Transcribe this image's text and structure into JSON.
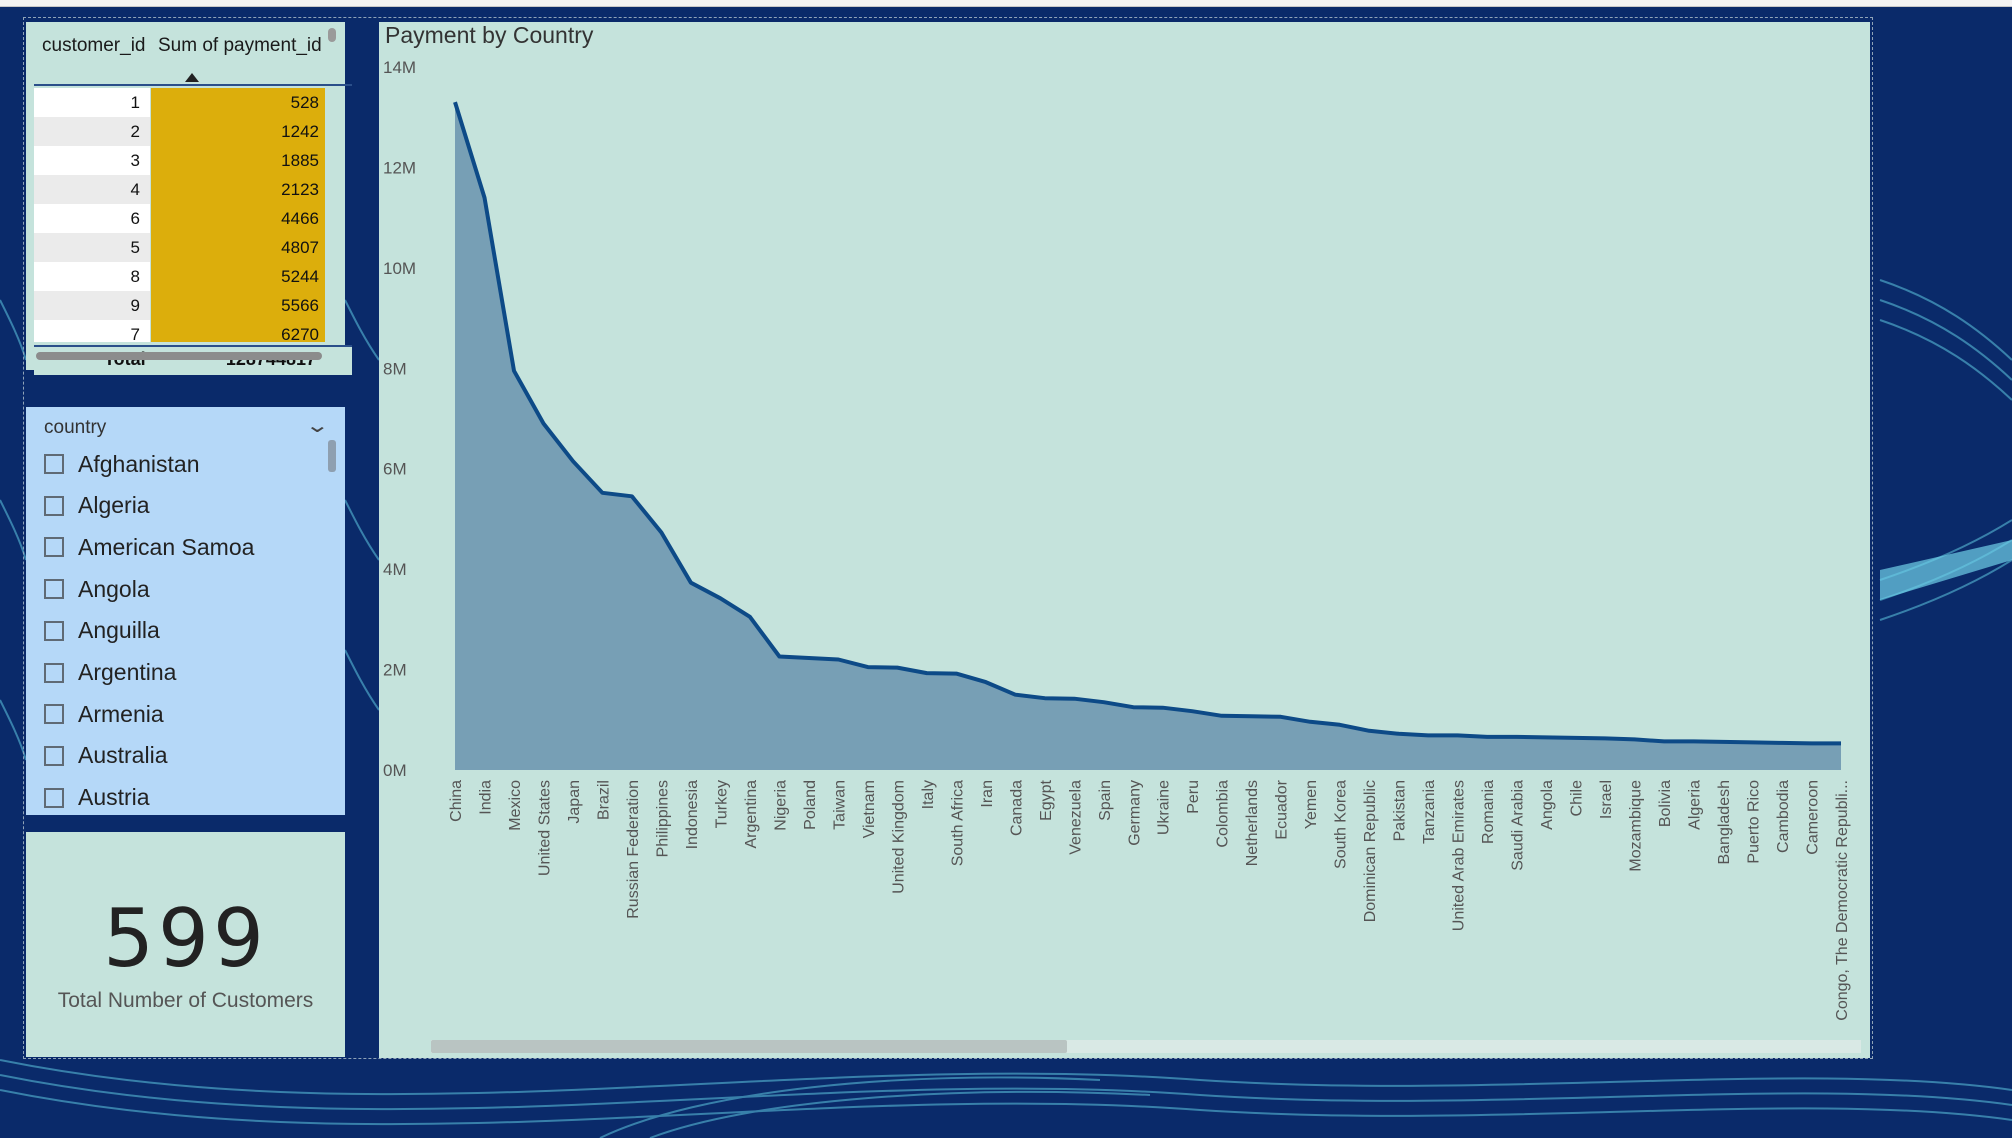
{
  "table": {
    "columns": [
      "customer_id",
      "Sum of payment_id"
    ],
    "sort_icon": "sort-ascending-icon",
    "rows": [
      {
        "id": "1",
        "sum": "528"
      },
      {
        "id": "2",
        "sum": "1242"
      },
      {
        "id": "3",
        "sum": "1885"
      },
      {
        "id": "4",
        "sum": "2123"
      },
      {
        "id": "6",
        "sum": "4466"
      },
      {
        "id": "5",
        "sum": "4807"
      },
      {
        "id": "8",
        "sum": "5244"
      },
      {
        "id": "9",
        "sum": "5566"
      },
      {
        "id": "7",
        "sum": "6270"
      }
    ],
    "total_label": "Total",
    "total_value": "128744817",
    "bar_color": "#dcae0c"
  },
  "slicer": {
    "title": "country",
    "chevron_icon": "chevron-down-icon",
    "items": [
      "Afghanistan",
      "Algeria",
      "American Samoa",
      "Angola",
      "Anguilla",
      "Argentina",
      "Armenia",
      "Australia",
      "Austria"
    ]
  },
  "card": {
    "value": "599",
    "label": "Total Number of Customers"
  },
  "chart_data": {
    "type": "area",
    "title": "Payment by Country",
    "xlabel": "",
    "ylabel": "",
    "ylim": [
      0,
      14000000
    ],
    "yticks": [
      {
        "value": 0,
        "label": "0M"
      },
      {
        "value": 2000000,
        "label": "2M"
      },
      {
        "value": 4000000,
        "label": "4M"
      },
      {
        "value": 6000000,
        "label": "6M"
      },
      {
        "value": 8000000,
        "label": "8M"
      },
      {
        "value": 10000000,
        "label": "10M"
      },
      {
        "value": 12000000,
        "label": "12M"
      },
      {
        "value": 14000000,
        "label": "14M"
      }
    ],
    "grid": false,
    "categories": [
      "China",
      "India",
      "Mexico",
      "United States",
      "Japan",
      "Brazil",
      "Russian Federation",
      "Philippines",
      "Indonesia",
      "Turkey",
      "Argentina",
      "Nigeria",
      "Poland",
      "Taiwan",
      "Vietnam",
      "United Kingdom",
      "Italy",
      "South Africa",
      "Iran",
      "Canada",
      "Egypt",
      "Venezuela",
      "Spain",
      "Germany",
      "Ukraine",
      "Peru",
      "Colombia",
      "Netherlands",
      "Ecuador",
      "Yemen",
      "South Korea",
      "Dominican Republic",
      "Pakistan",
      "Tanzania",
      "United Arab Emirates",
      "Romania",
      "Saudi Arabia",
      "Angola",
      "Chile",
      "Israel",
      "Mozambique",
      "Bolivia",
      "Algeria",
      "Bangladesh",
      "Puerto Rico",
      "Cambodia",
      "Cameroon",
      "Congo, The Democratic Republi..."
    ],
    "values": [
      13300000,
      11400000,
      7950000,
      6900000,
      6150000,
      5520000,
      5450000,
      4730000,
      3730000,
      3420000,
      3050000,
      2260000,
      2230000,
      2200000,
      2050000,
      2040000,
      1930000,
      1920000,
      1750000,
      1500000,
      1430000,
      1420000,
      1350000,
      1250000,
      1240000,
      1170000,
      1080000,
      1070000,
      1060000,
      960000,
      900000,
      780000,
      720000,
      690000,
      690000,
      660000,
      660000,
      650000,
      640000,
      630000,
      610000,
      570000,
      570000,
      560000,
      550000,
      540000,
      530000,
      530000
    ],
    "colors": {
      "line": "#0d4a87",
      "fill": "#779fb5"
    }
  }
}
